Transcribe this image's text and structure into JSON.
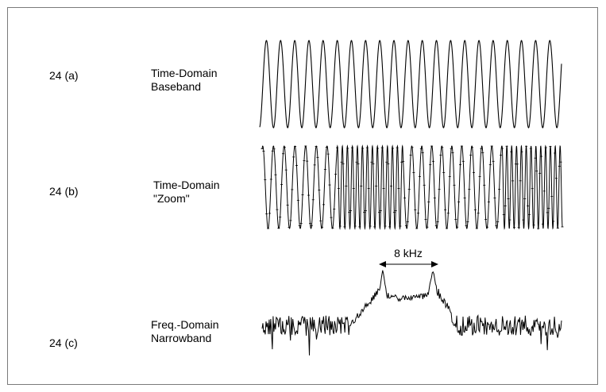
{
  "panels": [
    {
      "id": "24 (a)",
      "title_line1": "Time-Domain",
      "title_line2": "Baseband"
    },
    {
      "id": "24 (b)",
      "title_line1": "Time-Domain",
      "title_line2": "\"Zoom\""
    },
    {
      "id": "24 (c)",
      "title_line1": "Freq.-Domain",
      "title_line2": "Narrowband"
    }
  ],
  "bandwidth_label": "8 kHz",
  "colors": {
    "trace": "#000000",
    "frame": "#7a7a7a"
  }
}
